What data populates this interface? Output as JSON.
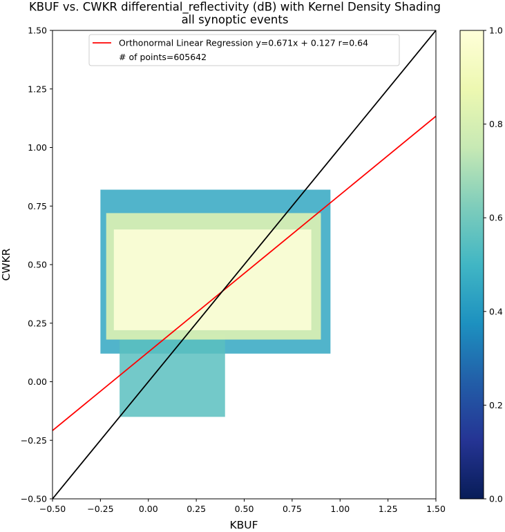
{
  "chart_data": {
    "type": "scatter",
    "title": "KBUF vs. CWKR differential_reflectivity (dB) with Kernel Density Shading",
    "subtitle": "all synoptic events",
    "xlabel": "KBUF",
    "ylabel": "CWKR",
    "xlim": [
      -0.5,
      1.5
    ],
    "ylim": [
      -0.5,
      1.5
    ],
    "x_ticks": [
      "−0.50",
      "−0.25",
      "0.00",
      "0.25",
      "0.50",
      "0.75",
      "1.00",
      "1.25",
      "1.50"
    ],
    "y_ticks": [
      "−0.50",
      "−0.25",
      "0.00",
      "0.25",
      "0.50",
      "0.75",
      "1.00",
      "1.25",
      "1.50"
    ],
    "grid": false,
    "legend_position": "top-center",
    "series": [
      {
        "name": "Orthonormal Linear Regression y=0.671x + 0.127 r=0.64",
        "type": "line",
        "color": "#ff0000",
        "slope": 0.671,
        "intercept": 0.127,
        "points": [
          [
            -0.5,
            -0.2085
          ],
          [
            1.5,
            1.1335
          ]
        ]
      },
      {
        "name": "one-to-one",
        "type": "line",
        "color": "#000000",
        "points": [
          [
            -0.5,
            -0.5
          ],
          [
            1.5,
            1.5
          ]
        ]
      }
    ],
    "points_label": "# of points=605642",
    "colormap": "YlGnBu_r",
    "colorbar": {
      "min": 0.0,
      "max": 1.0,
      "ticks": [
        "0.0",
        "0.2",
        "0.4",
        "0.6",
        "0.8",
        "1.0"
      ]
    },
    "density_regions": [
      {
        "x": [
          -0.25,
          0.95
        ],
        "y": [
          0.12,
          0.82
        ],
        "level": 0.45
      },
      {
        "x": [
          -0.15,
          0.4
        ],
        "y": [
          -0.15,
          0.2
        ],
        "level": 0.55
      },
      {
        "x": [
          -0.22,
          0.9
        ],
        "y": [
          0.18,
          0.72
        ],
        "level": 0.85
      },
      {
        "x": [
          -0.18,
          0.85
        ],
        "y": [
          0.22,
          0.65
        ],
        "level": 1.0
      }
    ]
  }
}
